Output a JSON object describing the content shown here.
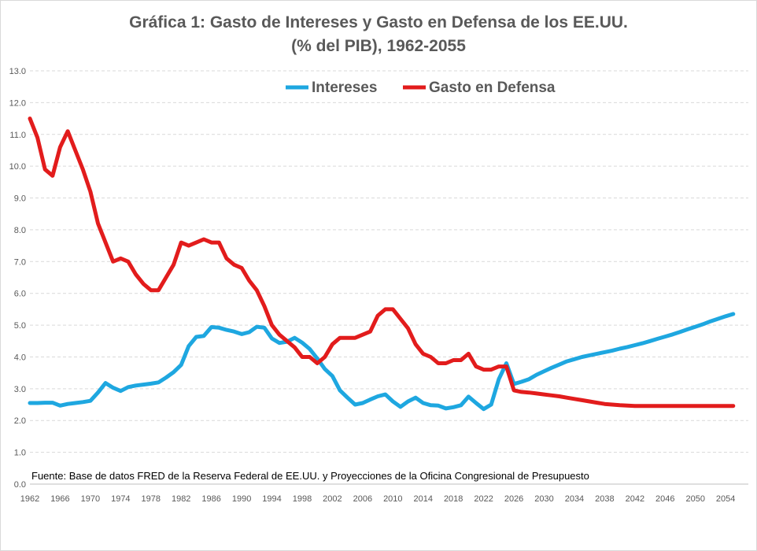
{
  "chart_data": {
    "type": "line",
    "title_line1": "Gráfica 1: Gasto de Intereses y Gasto en Defensa de los EE.UU.",
    "title_line2": "(% del PIB), 1962-2055",
    "source": "Fuente: Base de datos FRED de la Reserva Federal de EE.UU. y Proyecciones de la Oficina Congresional de Presupuesto",
    "xlim": [
      1962,
      2057
    ],
    "ylim": [
      0,
      13
    ],
    "grid": true,
    "legend_position": "top",
    "x_ticks": [
      1962,
      1966,
      1970,
      1974,
      1978,
      1982,
      1986,
      1990,
      1994,
      1998,
      2002,
      2006,
      2010,
      2014,
      2018,
      2022,
      2026,
      2030,
      2034,
      2038,
      2042,
      2046,
      2050,
      2054
    ],
    "y_ticks": [
      "0.0",
      "1.0",
      "2.0",
      "3.0",
      "4.0",
      "5.0",
      "6.0",
      "7.0",
      "8.0",
      "9.0",
      "10.0",
      "11.0",
      "12.0",
      "13.0"
    ],
    "series": [
      {
        "name": "Intereses",
        "color": "#1ea7e0",
        "x": [
          1962,
          1963,
          1964,
          1965,
          1966,
          1967,
          1968,
          1969,
          1970,
          1971,
          1972,
          1973,
          1974,
          1975,
          1976,
          1977,
          1978,
          1979,
          1980,
          1981,
          1982,
          1983,
          1984,
          1985,
          1986,
          1987,
          1988,
          1989,
          1990,
          1991,
          1992,
          1993,
          1994,
          1995,
          1996,
          1997,
          1998,
          1999,
          2000,
          2001,
          2002,
          2003,
          2004,
          2005,
          2006,
          2007,
          2008,
          2009,
          2010,
          2011,
          2012,
          2013,
          2014,
          2015,
          2016,
          2017,
          2018,
          2019,
          2020,
          2021,
          2022,
          2023,
          2024,
          2025,
          2026,
          2027,
          2028,
          2029,
          2030,
          2031,
          2032,
          2033,
          2034,
          2035,
          2036,
          2037,
          2038,
          2039,
          2040,
          2041,
          2042,
          2043,
          2044,
          2045,
          2046,
          2047,
          2048,
          2049,
          2050,
          2051,
          2052,
          2053,
          2054,
          2055
        ],
        "values": [
          2.55,
          2.55,
          2.56,
          2.56,
          2.47,
          2.52,
          2.55,
          2.58,
          2.62,
          2.88,
          3.18,
          3.03,
          2.93,
          3.05,
          3.1,
          3.13,
          3.16,
          3.2,
          3.35,
          3.52,
          3.75,
          4.34,
          4.63,
          4.66,
          4.94,
          4.92,
          4.85,
          4.8,
          4.72,
          4.78,
          4.95,
          4.92,
          4.58,
          4.44,
          4.48,
          4.6,
          4.45,
          4.25,
          3.95,
          3.62,
          3.4,
          2.95,
          2.72,
          2.5,
          2.55,
          2.66,
          2.76,
          2.82,
          2.6,
          2.43,
          2.6,
          2.72,
          2.55,
          2.48,
          2.47,
          2.38,
          2.42,
          2.48,
          2.75,
          2.55,
          2.36,
          2.5,
          3.3,
          3.8,
          3.15,
          3.22,
          3.3,
          3.44,
          3.55,
          3.66,
          3.76,
          3.86,
          3.93,
          4.0,
          4.05,
          4.1,
          4.15,
          4.2,
          4.26,
          4.31,
          4.37,
          4.43,
          4.5,
          4.57,
          4.64,
          4.71,
          4.79,
          4.87,
          4.95,
          5.03,
          5.12,
          5.2,
          5.28,
          5.35
        ]
      },
      {
        "name": "Gasto en Defensa",
        "color": "#e21c1c",
        "x": [
          1962,
          1963,
          1964,
          1965,
          1966,
          1967,
          1968,
          1969,
          1970,
          1971,
          1972,
          1973,
          1974,
          1975,
          1976,
          1977,
          1978,
          1979,
          1980,
          1981,
          1982,
          1983,
          1984,
          1985,
          1986,
          1987,
          1988,
          1989,
          1990,
          1991,
          1992,
          1993,
          1994,
          1995,
          1996,
          1997,
          1998,
          1999,
          2000,
          2001,
          2002,
          2003,
          2004,
          2005,
          2006,
          2007,
          2008,
          2009,
          2010,
          2011,
          2012,
          2013,
          2014,
          2015,
          2016,
          2017,
          2018,
          2019,
          2020,
          2021,
          2022,
          2023,
          2024,
          2025,
          2026,
          2027,
          2028,
          2029,
          2030,
          2031,
          2032,
          2033,
          2034,
          2035,
          2036,
          2037,
          2038,
          2039,
          2040,
          2041,
          2042,
          2043,
          2044,
          2045,
          2046,
          2047,
          2048,
          2049,
          2050,
          2051,
          2052,
          2053,
          2054,
          2055
        ],
        "values": [
          11.5,
          10.9,
          9.9,
          9.7,
          10.6,
          11.1,
          10.5,
          9.9,
          9.2,
          8.2,
          7.6,
          7.0,
          7.1,
          7.0,
          6.6,
          6.3,
          6.1,
          6.1,
          6.5,
          6.9,
          7.6,
          7.5,
          7.6,
          7.7,
          7.6,
          7.6,
          7.1,
          6.9,
          6.8,
          6.4,
          6.1,
          5.6,
          5.0,
          4.7,
          4.5,
          4.3,
          4.0,
          4.0,
          3.8,
          4.0,
          4.4,
          4.6,
          4.6,
          4.6,
          4.7,
          4.8,
          5.3,
          5.5,
          5.5,
          5.2,
          4.9,
          4.4,
          4.1,
          4.0,
          3.8,
          3.8,
          3.9,
          3.9,
          4.1,
          3.7,
          3.6,
          3.6,
          3.7,
          3.7,
          2.95,
          2.9,
          2.88,
          2.85,
          2.82,
          2.79,
          2.76,
          2.72,
          2.68,
          2.64,
          2.6,
          2.56,
          2.52,
          2.5,
          2.48,
          2.47,
          2.46,
          2.46,
          2.46,
          2.46,
          2.46,
          2.46,
          2.46,
          2.46,
          2.46,
          2.46,
          2.46,
          2.46,
          2.46,
          2.46
        ]
      }
    ]
  }
}
